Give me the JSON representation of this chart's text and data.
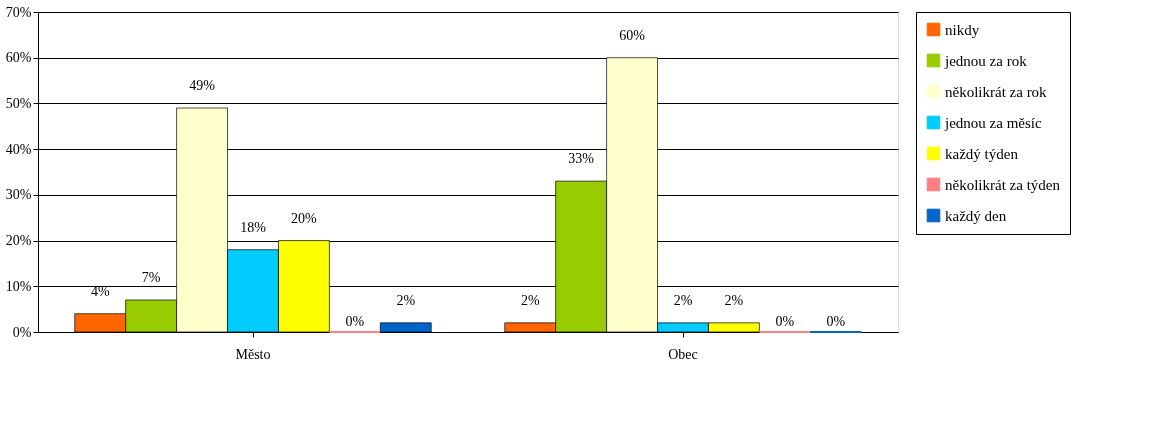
{
  "chart_data": {
    "type": "bar",
    "categories": [
      "Město",
      "Obec"
    ],
    "series": [
      {
        "name": "nikdy",
        "color": "#ff6600",
        "values": [
          4,
          2
        ],
        "value_labels": [
          "4%",
          "2%"
        ]
      },
      {
        "name": "jednou za rok",
        "color": "#99cc00",
        "values": [
          7,
          33
        ],
        "value_labels": [
          "7%",
          "33%"
        ]
      },
      {
        "name": "několikrát za rok",
        "color": "#ffffcc",
        "values": [
          49,
          60
        ],
        "value_labels": [
          "49%",
          "60%"
        ]
      },
      {
        "name": "jednou za měsíc",
        "color": "#00ccff",
        "values": [
          18,
          2
        ],
        "value_labels": [
          "18%",
          "2%"
        ]
      },
      {
        "name": "každý týden",
        "color": "#ffff00",
        "values": [
          20,
          2
        ],
        "value_labels": [
          "20%",
          "2%"
        ]
      },
      {
        "name": "několikrát za týden",
        "color": "#ff8080",
        "values": [
          0,
          0
        ],
        "value_labels": [
          "0%",
          "0%"
        ]
      },
      {
        "name": "každý den",
        "color": "#0066cc",
        "values": [
          2,
          0
        ],
        "value_labels": [
          "2%",
          "0%"
        ]
      }
    ],
    "ylim": [
      0,
      70
    ],
    "yticks": [
      {
        "value": 0,
        "label": "0%"
      },
      {
        "value": 10,
        "label": "10%"
      },
      {
        "value": 20,
        "label": "20%"
      },
      {
        "value": 30,
        "label": "30%"
      },
      {
        "value": 40,
        "label": "40%"
      },
      {
        "value": 50,
        "label": "50%"
      },
      {
        "value": 60,
        "label": "60%"
      },
      {
        "value": 70,
        "label": "70%"
      }
    ],
    "grid": "y",
    "legend": "right"
  }
}
